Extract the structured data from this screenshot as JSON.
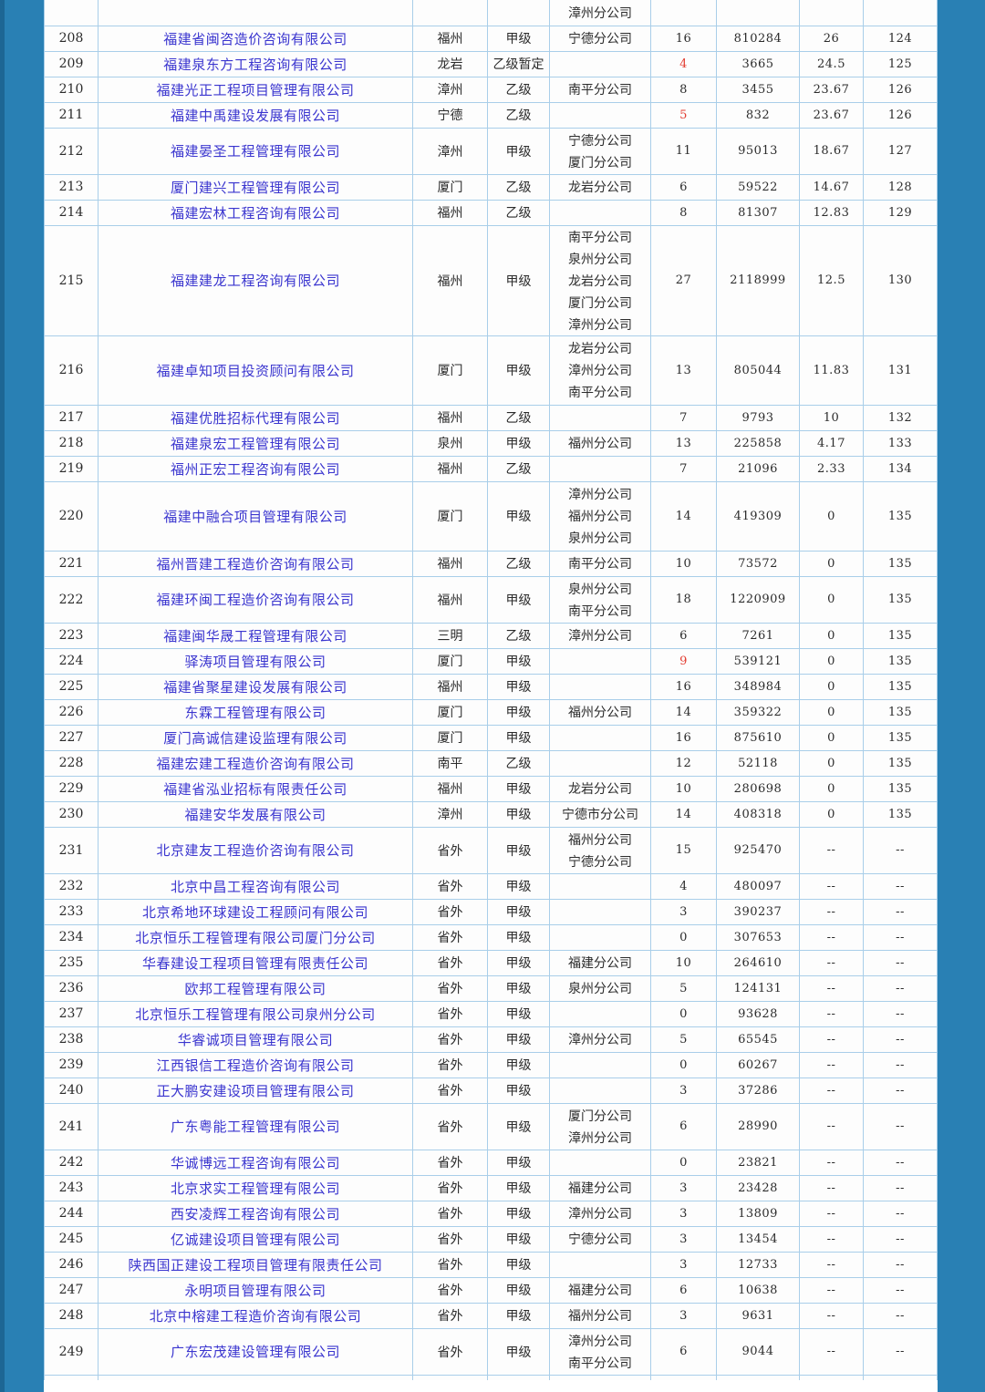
{
  "page": {
    "margin_color": "#2980b4",
    "margin_edge_color": "#1d6694",
    "table_border_color": "#a9cee9",
    "row_background": "#fdfdfd",
    "company_link_color": "#3a35cf",
    "highlight_red_color": "#e23c30",
    "empty_rank_placeholder": "--"
  },
  "table": {
    "partial_top_row": {
      "branches": [
        "漳州分公司"
      ]
    },
    "rows": [
      {
        "no": "208",
        "name": "福建省闽咨造价咨询有限公司",
        "city": "福州",
        "grade": "甲级",
        "branches": [
          "宁德分公司"
        ],
        "count": "16",
        "count_red": false,
        "amount": "810284",
        "score": "26",
        "rank": "124"
      },
      {
        "no": "209",
        "name": "福建泉东方工程咨询有限公司",
        "city": "龙岩",
        "grade": "乙级暂定",
        "branches": [],
        "count": "4",
        "count_red": true,
        "amount": "3665",
        "score": "24.5",
        "rank": "125"
      },
      {
        "no": "210",
        "name": "福建光正工程项目管理有限公司",
        "city": "漳州",
        "grade": "乙级",
        "branches": [
          "南平分公司"
        ],
        "count": "8",
        "count_red": false,
        "amount": "3455",
        "score": "23.67",
        "rank": "126"
      },
      {
        "no": "211",
        "name": "福建中禹建设发展有限公司",
        "city": "宁德",
        "grade": "乙级",
        "branches": [],
        "count": "5",
        "count_red": true,
        "amount": "832",
        "score": "23.67",
        "rank": "126"
      },
      {
        "no": "212",
        "name": "福建晏圣工程管理有限公司",
        "city": "漳州",
        "grade": "甲级",
        "branches": [
          "宁德分公司",
          "厦门分公司"
        ],
        "count": "11",
        "count_red": false,
        "amount": "95013",
        "score": "18.67",
        "rank": "127"
      },
      {
        "no": "213",
        "name": "厦门建兴工程管理有限公司",
        "city": "厦门",
        "grade": "乙级",
        "branches": [
          "龙岩分公司"
        ],
        "count": "6",
        "count_red": false,
        "amount": "59522",
        "score": "14.67",
        "rank": "128"
      },
      {
        "no": "214",
        "name": "福建宏林工程咨询有限公司",
        "city": "福州",
        "grade": "乙级",
        "branches": [],
        "count": "8",
        "count_red": false,
        "amount": "81307",
        "score": "12.83",
        "rank": "129"
      },
      {
        "no": "215",
        "name": "福建建龙工程咨询有限公司",
        "city": "福州",
        "grade": "甲级",
        "branches": [
          "南平分公司",
          "泉州分公司",
          "龙岩分公司",
          "厦门分公司",
          "漳州分公司"
        ],
        "count": "27",
        "count_red": false,
        "amount": "2118999",
        "score": "12.5",
        "rank": "130"
      },
      {
        "no": "216",
        "name": "福建卓知项目投资顾问有限公司",
        "city": "厦门",
        "grade": "甲级",
        "branches": [
          "龙岩分公司",
          "漳州分公司",
          "南平分公司"
        ],
        "count": "13",
        "count_red": false,
        "amount": "805044",
        "score": "11.83",
        "rank": "131"
      },
      {
        "no": "217",
        "name": "福建优胜招标代理有限公司",
        "city": "福州",
        "grade": "乙级",
        "branches": [],
        "count": "7",
        "count_red": false,
        "amount": "9793",
        "score": "10",
        "rank": "132"
      },
      {
        "no": "218",
        "name": "福建泉宏工程管理有限公司",
        "city": "泉州",
        "grade": "甲级",
        "branches": [
          "福州分公司"
        ],
        "count": "13",
        "count_red": false,
        "amount": "225858",
        "score": "4.17",
        "rank": "133"
      },
      {
        "no": "219",
        "name": "福州正宏工程咨询有限公司",
        "city": "福州",
        "grade": "乙级",
        "branches": [],
        "count": "7",
        "count_red": false,
        "amount": "21096",
        "score": "2.33",
        "rank": "134"
      },
      {
        "no": "220",
        "name": "福建中融合项目管理有限公司",
        "city": "厦门",
        "grade": "甲级",
        "branches": [
          "漳州分公司",
          "福州分公司",
          "泉州分公司"
        ],
        "count": "14",
        "count_red": false,
        "amount": "419309",
        "score": "0",
        "rank": "135"
      },
      {
        "no": "221",
        "name": "福州晋建工程造价咨询有限公司",
        "city": "福州",
        "grade": "乙级",
        "branches": [
          "南平分公司"
        ],
        "count": "10",
        "count_red": false,
        "amount": "73572",
        "score": "0",
        "rank": "135"
      },
      {
        "no": "222",
        "name": "福建环闽工程造价咨询有限公司",
        "city": "福州",
        "grade": "甲级",
        "branches": [
          "泉州分公司",
          "南平分公司"
        ],
        "count": "18",
        "count_red": false,
        "amount": "1220909",
        "score": "0",
        "rank": "135"
      },
      {
        "no": "223",
        "name": "福建闽华晟工程管理有限公司",
        "city": "三明",
        "grade": "乙级",
        "branches": [
          "漳州分公司"
        ],
        "count": "6",
        "count_red": false,
        "amount": "7261",
        "score": "0",
        "rank": "135"
      },
      {
        "no": "224",
        "name": "驿涛项目管理有限公司",
        "city": "厦门",
        "grade": "甲级",
        "branches": [],
        "count": "9",
        "count_red": true,
        "amount": "539121",
        "score": "0",
        "rank": "135"
      },
      {
        "no": "225",
        "name": "福建省聚星建设发展有限公司",
        "city": "福州",
        "grade": "甲级",
        "branches": [],
        "count": "16",
        "count_red": false,
        "amount": "348984",
        "score": "0",
        "rank": "135"
      },
      {
        "no": "226",
        "name": "东霖工程管理有限公司",
        "city": "厦门",
        "grade": "甲级",
        "branches": [
          "福州分公司"
        ],
        "count": "14",
        "count_red": false,
        "amount": "359322",
        "score": "0",
        "rank": "135"
      },
      {
        "no": "227",
        "name": "厦门高诚信建设监理有限公司",
        "city": "厦门",
        "grade": "甲级",
        "branches": [],
        "count": "16",
        "count_red": false,
        "amount": "875610",
        "score": "0",
        "rank": "135"
      },
      {
        "no": "228",
        "name": "福建宏建工程造价咨询有限公司",
        "city": "南平",
        "grade": "乙级",
        "branches": [],
        "count": "12",
        "count_red": false,
        "amount": "52118",
        "score": "0",
        "rank": "135"
      },
      {
        "no": "229",
        "name": "福建省泓业招标有限责任公司",
        "city": "福州",
        "grade": "甲级",
        "branches": [
          "龙岩分公司"
        ],
        "count": "10",
        "count_red": false,
        "amount": "280698",
        "score": "0",
        "rank": "135"
      },
      {
        "no": "230",
        "name": "福建安华发展有限公司",
        "city": "漳州",
        "grade": "甲级",
        "branches": [
          "宁德市分公司"
        ],
        "count": "14",
        "count_red": false,
        "amount": "408318",
        "score": "0",
        "rank": "135"
      },
      {
        "no": "231",
        "name": "北京建友工程造价咨询有限公司",
        "city": "省外",
        "grade": "甲级",
        "branches": [
          "福州分公司",
          "宁德分公司"
        ],
        "count": "15",
        "count_red": false,
        "amount": "925470",
        "score": "--",
        "rank": "--"
      },
      {
        "no": "232",
        "name": "北京中昌工程咨询有限公司",
        "city": "省外",
        "grade": "甲级",
        "branches": [],
        "count": "4",
        "count_red": false,
        "amount": "480097",
        "score": "--",
        "rank": "--"
      },
      {
        "no": "233",
        "name": "北京希地环球建设工程顾问有限公司",
        "city": "省外",
        "grade": "甲级",
        "branches": [],
        "count": "3",
        "count_red": false,
        "amount": "390237",
        "score": "--",
        "rank": "--"
      },
      {
        "no": "234",
        "name": "北京恒乐工程管理有限公司厦门分公司",
        "city": "省外",
        "grade": "甲级",
        "branches": [],
        "count": "0",
        "count_red": false,
        "amount": "307653",
        "score": "--",
        "rank": "--"
      },
      {
        "no": "235",
        "name": "华春建设工程项目管理有限责任公司",
        "city": "省外",
        "grade": "甲级",
        "branches": [
          "福建分公司"
        ],
        "count": "10",
        "count_red": false,
        "amount": "264610",
        "score": "--",
        "rank": "--"
      },
      {
        "no": "236",
        "name": "欧邦工程管理有限公司",
        "city": "省外",
        "grade": "甲级",
        "branches": [
          "泉州分公司"
        ],
        "count": "5",
        "count_red": false,
        "amount": "124131",
        "score": "--",
        "rank": "--"
      },
      {
        "no": "237",
        "name": "北京恒乐工程管理有限公司泉州分公司",
        "city": "省外",
        "grade": "甲级",
        "branches": [],
        "count": "0",
        "count_red": false,
        "amount": "93628",
        "score": "--",
        "rank": "--"
      },
      {
        "no": "238",
        "name": "华睿诚项目管理有限公司",
        "city": "省外",
        "grade": "甲级",
        "branches": [
          "漳州分公司"
        ],
        "count": "5",
        "count_red": false,
        "amount": "65545",
        "score": "--",
        "rank": "--"
      },
      {
        "no": "239",
        "name": "江西银信工程造价咨询有限公司",
        "city": "省外",
        "grade": "甲级",
        "branches": [],
        "count": "0",
        "count_red": false,
        "amount": "60267",
        "score": "--",
        "rank": "--"
      },
      {
        "no": "240",
        "name": "正大鹏安建设项目管理有限公司",
        "city": "省外",
        "grade": "甲级",
        "branches": [],
        "count": "3",
        "count_red": false,
        "amount": "37286",
        "score": "--",
        "rank": "--"
      },
      {
        "no": "241",
        "name": "广东粤能工程管理有限公司",
        "city": "省外",
        "grade": "甲级",
        "branches": [
          "厦门分公司",
          "漳州分公司"
        ],
        "count": "6",
        "count_red": false,
        "amount": "28990",
        "score": "--",
        "rank": "--"
      },
      {
        "no": "242",
        "name": "华诚博远工程咨询有限公司",
        "city": "省外",
        "grade": "甲级",
        "branches": [],
        "count": "0",
        "count_red": false,
        "amount": "23821",
        "score": "--",
        "rank": "--"
      },
      {
        "no": "243",
        "name": "北京求实工程管理有限公司",
        "city": "省外",
        "grade": "甲级",
        "branches": [
          "福建分公司"
        ],
        "count": "3",
        "count_red": false,
        "amount": "23428",
        "score": "--",
        "rank": "--"
      },
      {
        "no": "244",
        "name": "西安凌辉工程咨询有限公司",
        "city": "省外",
        "grade": "甲级",
        "branches": [
          "漳州分公司"
        ],
        "count": "3",
        "count_red": false,
        "amount": "13809",
        "score": "--",
        "rank": "--"
      },
      {
        "no": "245",
        "name": "亿诚建设项目管理有限公司",
        "city": "省外",
        "grade": "甲级",
        "branches": [
          "宁德分公司"
        ],
        "count": "3",
        "count_red": false,
        "amount": "13454",
        "score": "--",
        "rank": "--"
      },
      {
        "no": "246",
        "name": "陕西国正建设工程项目管理有限责任公司",
        "city": "省外",
        "grade": "甲级",
        "branches": [],
        "count": "3",
        "count_red": false,
        "amount": "12733",
        "score": "--",
        "rank": "--"
      },
      {
        "no": "247",
        "name": "永明项目管理有限公司",
        "city": "省外",
        "grade": "甲级",
        "branches": [
          "福建分公司"
        ],
        "count": "6",
        "count_red": false,
        "amount": "10638",
        "score": "--",
        "rank": "--"
      },
      {
        "no": "248",
        "name": "北京中榕建工程造价咨询有限公司",
        "city": "省外",
        "grade": "甲级",
        "branches": [
          "福州分公司"
        ],
        "count": "3",
        "count_red": false,
        "amount": "9631",
        "score": "--",
        "rank": "--"
      },
      {
        "no": "249",
        "name": "广东宏茂建设管理有限公司",
        "city": "省外",
        "grade": "甲级",
        "branches": [
          "漳州分公司",
          "南平分公司"
        ],
        "count": "6",
        "count_red": false,
        "amount": "9044",
        "score": "--",
        "rank": "--"
      }
    ]
  }
}
